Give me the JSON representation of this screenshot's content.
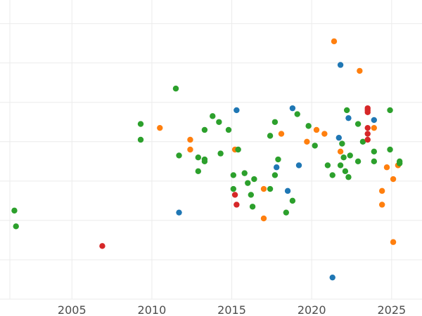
{
  "chart_data": {
    "type": "scatter",
    "title": "",
    "xlabel": "",
    "ylabel": "",
    "xlim": [
      2000.5,
      2026.9
    ],
    "ylim": [
      0,
      7.6
    ],
    "x_ticks": [
      2005,
      2010,
      2015,
      2020,
      2025
    ],
    "x_tick_labels": [
      "2005",
      "2010",
      "2015",
      "2020",
      "2025"
    ],
    "y_gridlines": [
      0,
      1,
      2,
      3,
      4,
      5,
      6,
      7
    ],
    "grid": true,
    "legend": "none",
    "colors": {
      "blue": "#1f77b4",
      "orange": "#ff7f0e",
      "green": "#2ca02c",
      "red": "#d62728"
    },
    "series": [
      {
        "color": "blue",
        "points": [
          [
            2011.7,
            2.2
          ],
          [
            2015.3,
            4.8
          ],
          [
            2017.8,
            3.35
          ],
          [
            2018.5,
            2.75
          ],
          [
            2018.8,
            4.85
          ],
          [
            2019.2,
            3.4
          ],
          [
            2021.3,
            0.55
          ],
          [
            2021.7,
            4.1
          ],
          [
            2021.8,
            5.95
          ],
          [
            2022.3,
            4.6
          ],
          [
            2023.9,
            4.55
          ]
        ]
      },
      {
        "color": "orange",
        "points": [
          [
            2010.5,
            4.35
          ],
          [
            2012.4,
            4.05
          ],
          [
            2012.4,
            3.8
          ],
          [
            2015.2,
            3.8
          ],
          [
            2017.0,
            2.8
          ],
          [
            2017.0,
            2.05
          ],
          [
            2018.1,
            4.2
          ],
          [
            2019.7,
            4.0
          ],
          [
            2020.3,
            4.3
          ],
          [
            2020.8,
            4.2
          ],
          [
            2021.4,
            6.55
          ],
          [
            2021.8,
            3.75
          ],
          [
            2023.0,
            5.8
          ],
          [
            2023.9,
            4.35
          ],
          [
            2024.4,
            2.75
          ],
          [
            2024.4,
            2.4
          ],
          [
            2024.7,
            3.35
          ],
          [
            2025.1,
            3.05
          ],
          [
            2025.1,
            1.45
          ],
          [
            2025.4,
            3.4
          ]
        ]
      },
      {
        "color": "green",
        "points": [
          [
            2001.4,
            2.25
          ],
          [
            2001.5,
            1.85
          ],
          [
            2009.3,
            4.45
          ],
          [
            2009.3,
            4.05
          ],
          [
            2011.5,
            5.35
          ],
          [
            2011.7,
            3.65
          ],
          [
            2012.9,
            3.25
          ],
          [
            2012.9,
            3.6
          ],
          [
            2013.3,
            3.55
          ],
          [
            2013.3,
            3.5
          ],
          [
            2013.3,
            4.3
          ],
          [
            2013.8,
            4.65
          ],
          [
            2014.2,
            4.5
          ],
          [
            2014.3,
            3.7
          ],
          [
            2014.8,
            4.3
          ],
          [
            2015.1,
            2.8
          ],
          [
            2015.1,
            3.15
          ],
          [
            2015.4,
            3.8
          ],
          [
            2015.8,
            3.2
          ],
          [
            2016.0,
            2.95
          ],
          [
            2016.2,
            2.65
          ],
          [
            2016.3,
            2.35
          ],
          [
            2016.4,
            3.05
          ],
          [
            2017.4,
            2.8
          ],
          [
            2017.4,
            4.15
          ],
          [
            2017.7,
            3.15
          ],
          [
            2017.7,
            4.5
          ],
          [
            2017.9,
            3.55
          ],
          [
            2018.4,
            2.2
          ],
          [
            2018.8,
            2.5
          ],
          [
            2019.1,
            4.7
          ],
          [
            2019.8,
            4.4
          ],
          [
            2020.2,
            3.9
          ],
          [
            2021.0,
            3.4
          ],
          [
            2021.3,
            3.15
          ],
          [
            2021.8,
            3.4
          ],
          [
            2021.9,
            3.95
          ],
          [
            2022.0,
            3.6
          ],
          [
            2022.1,
            3.25
          ],
          [
            2022.2,
            4.8
          ],
          [
            2022.3,
            3.1
          ],
          [
            2022.4,
            3.65
          ],
          [
            2022.9,
            3.5
          ],
          [
            2022.9,
            4.45
          ],
          [
            2023.2,
            4.0
          ],
          [
            2023.9,
            3.5
          ],
          [
            2023.9,
            3.75
          ],
          [
            2024.9,
            3.8
          ],
          [
            2024.9,
            4.8
          ],
          [
            2025.5,
            3.45
          ],
          [
            2025.5,
            3.5
          ]
        ]
      },
      {
        "color": "red",
        "points": [
          [
            2006.9,
            1.35
          ],
          [
            2015.2,
            2.65
          ],
          [
            2015.3,
            2.4
          ],
          [
            2023.5,
            4.85
          ],
          [
            2023.5,
            4.8
          ],
          [
            2023.5,
            4.75
          ],
          [
            2023.5,
            4.35
          ],
          [
            2023.5,
            4.2
          ],
          [
            2023.5,
            4.05
          ]
        ]
      }
    ]
  }
}
